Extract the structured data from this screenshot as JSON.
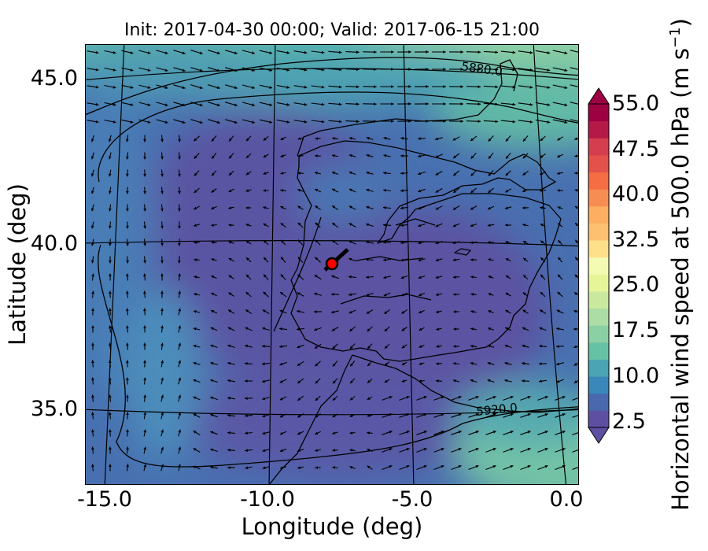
{
  "title": "Init: 2017-04-30 00:00; Valid: 2017-06-15 21:00",
  "xlabel": "Longitude (deg)",
  "ylabel": "Latitude (deg)",
  "x_ticks": [
    "-15.0",
    "-10.0",
    "-5.0",
    "0.0"
  ],
  "y_ticks": [
    "45.0",
    "40.0",
    "35.0"
  ],
  "colorbar": {
    "label_prefix": "Horizontal wind speed at 500.0 hPa (m s",
    "label_exp": "−1",
    "label_suffix": ")",
    "ticks": [
      "55.0",
      "47.5",
      "40.0",
      "32.5",
      "25.0",
      "17.5",
      "10.0",
      "2.5"
    ],
    "colors": [
      "#5e4fa2",
      "#4a68ad",
      "#3a87b9",
      "#4aa4b3",
      "#66c2a5",
      "#8bd0a4",
      "#abdda4",
      "#cbe99e",
      "#e6f598",
      "#f3fab1",
      "#fee08b",
      "#fdc070",
      "#fdae61",
      "#f68d52",
      "#f46d43",
      "#e2514a",
      "#d53e4f",
      "#b41947",
      "#9e0142"
    ],
    "under_color": "#5e4fa2",
    "over_color": "#9e0142"
  },
  "contours": [
    {
      "label": "5880.0"
    },
    {
      "label": "5920.0"
    }
  ],
  "marker": {
    "lon": -7.7,
    "lat": 39.3,
    "color": "#ff0000"
  },
  "chart_data": {
    "type": "heatmap",
    "title": "Init: 2017-04-30 00:00; Valid: 2017-06-15 21:00",
    "xlabel": "Longitude (deg)",
    "ylabel": "Latitude (deg)",
    "xlim": [
      -16,
      0.3
    ],
    "ylim": [
      32.7,
      46.2
    ],
    "colorbar_range": [
      2.5,
      55.0
    ],
    "colorbar_extend": "both",
    "variable": "Horizontal wind speed at 500.0 hPa",
    "units": "m s-1",
    "overlays": [
      "wind vectors",
      "geopotential height contours",
      "coastlines"
    ]
  }
}
